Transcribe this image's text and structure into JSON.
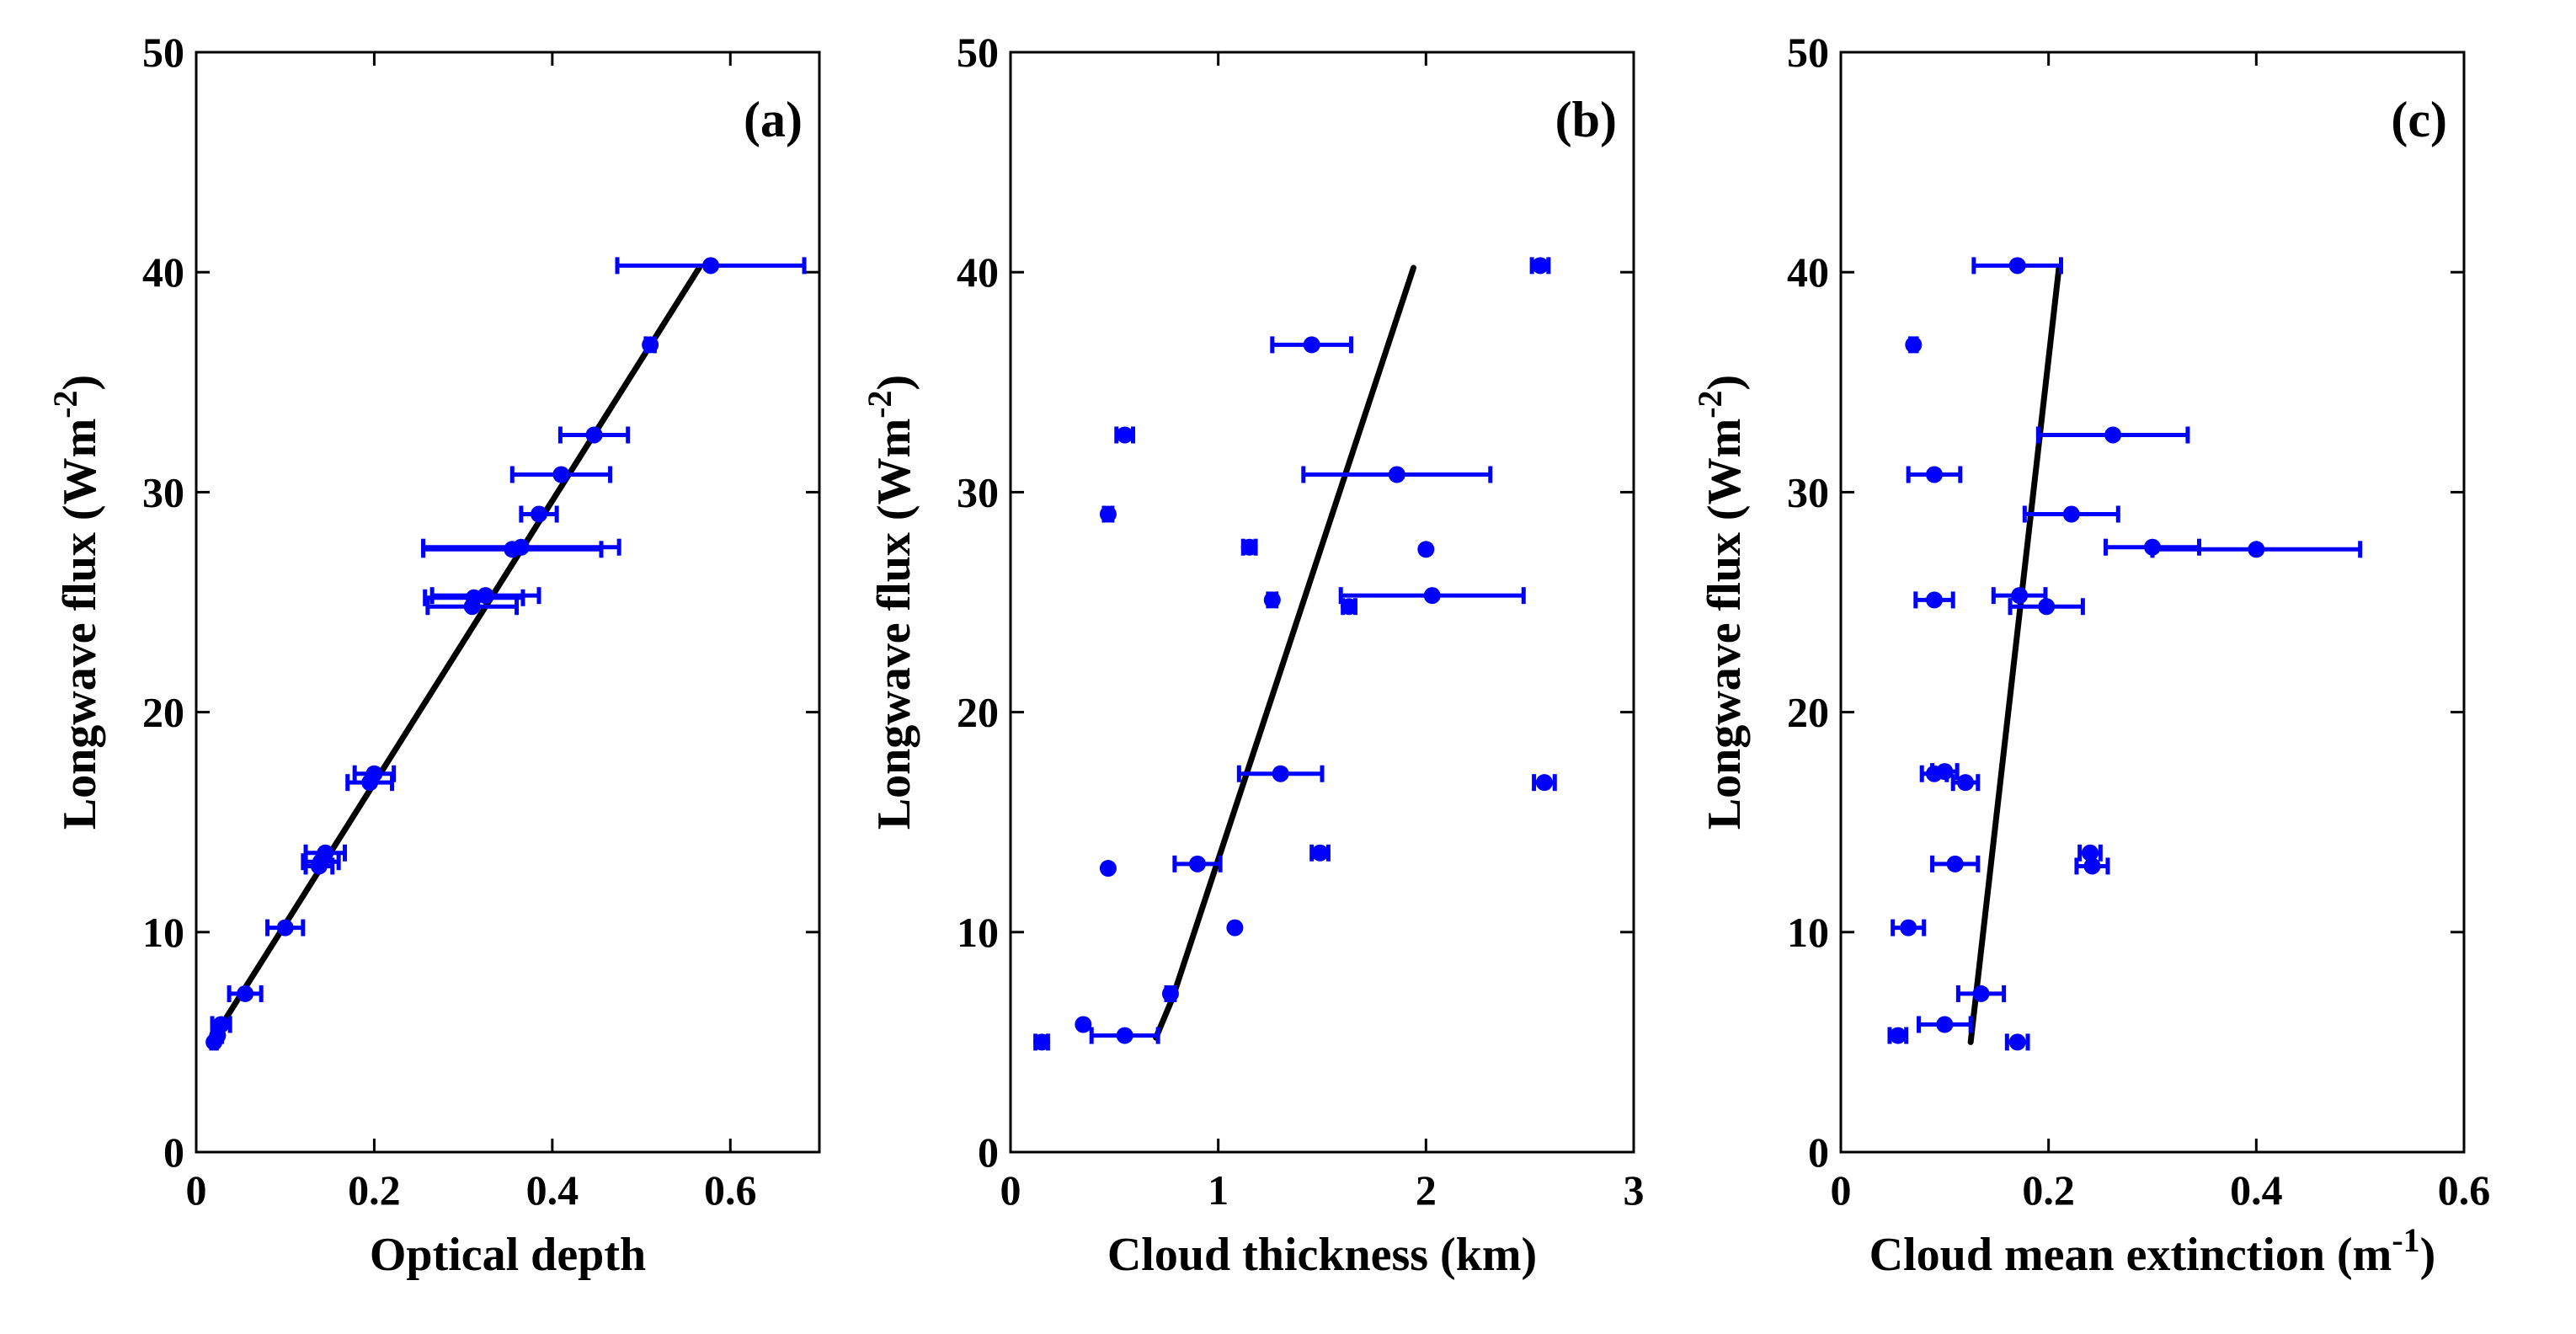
{
  "chart_data": [
    {
      "type": "scatter",
      "panel_label": "(a)",
      "xlabel": "Optical depth",
      "ylabel": "Longwave flux (Wm",
      "ylabel_sup": "-2",
      "ylabel_close": ")",
      "xlim": [
        0,
        0.7
      ],
      "ylim": [
        0,
        50
      ],
      "xticks": [
        0,
        0.2,
        0.4,
        0.6
      ],
      "xtick_labels": [
        "0",
        "0.2",
        "0.4",
        "0.6"
      ],
      "yticks": [
        0,
        10,
        20,
        30,
        40,
        50
      ],
      "ytick_labels": [
        "0",
        "10",
        "20",
        "30",
        "40",
        "50"
      ],
      "points": [
        {
          "x": 0.578,
          "y": 40.3,
          "err": 0.105
        },
        {
          "x": 0.51,
          "y": 36.7,
          "err": 0.005
        },
        {
          "x": 0.447,
          "y": 32.6,
          "err": 0.038
        },
        {
          "x": 0.41,
          "y": 30.8,
          "err": 0.055
        },
        {
          "x": 0.385,
          "y": 29.0,
          "err": 0.02
        },
        {
          "x": 0.365,
          "y": 27.5,
          "err": 0.11
        },
        {
          "x": 0.355,
          "y": 27.4,
          "err": 0.1
        },
        {
          "x": 0.325,
          "y": 25.3,
          "err": 0.06
        },
        {
          "x": 0.312,
          "y": 25.2,
          "err": 0.055
        },
        {
          "x": 0.31,
          "y": 24.8,
          "err": 0.05
        },
        {
          "x": 0.2,
          "y": 17.2,
          "err": 0.022
        },
        {
          "x": 0.195,
          "y": 16.8,
          "err": 0.025
        },
        {
          "x": 0.145,
          "y": 13.6,
          "err": 0.022
        },
        {
          "x": 0.14,
          "y": 13.2,
          "err": 0.02
        },
        {
          "x": 0.138,
          "y": 13.0,
          "err": 0.015
        },
        {
          "x": 0.1,
          "y": 10.2,
          "err": 0.02
        },
        {
          "x": 0.055,
          "y": 7.2,
          "err": 0.018
        },
        {
          "x": 0.028,
          "y": 5.8,
          "err": 0.01
        },
        {
          "x": 0.024,
          "y": 5.3,
          "err": 0.005
        },
        {
          "x": 0.02,
          "y": 5.0,
          "err": 0.003
        }
      ],
      "fit_line": [
        [
          0.015,
          4.9
        ],
        [
          0.565,
          40.2
        ]
      ]
    },
    {
      "type": "scatter",
      "panel_label": "(b)",
      "xlabel": "Cloud thickness (km)",
      "ylabel": "Longwave flux (Wm",
      "ylabel_sup": "-2",
      "ylabel_close": ")",
      "xlim": [
        0,
        3
      ],
      "ylim": [
        0,
        50
      ],
      "xticks": [
        0,
        1,
        2,
        3
      ],
      "xtick_labels": [
        "0",
        "1",
        "2",
        "3"
      ],
      "yticks": [
        0,
        10,
        20,
        30,
        40,
        50
      ],
      "ytick_labels": [
        "0",
        "10",
        "20",
        "30",
        "40",
        "50"
      ],
      "points": [
        {
          "x": 2.55,
          "y": 40.3,
          "err": 0.04
        },
        {
          "x": 1.45,
          "y": 36.7,
          "err": 0.19
        },
        {
          "x": 0.55,
          "y": 32.6,
          "err": 0.04
        },
        {
          "x": 1.86,
          "y": 30.8,
          "err": 0.45
        },
        {
          "x": 0.47,
          "y": 29.0,
          "err": 0.02
        },
        {
          "x": 1.15,
          "y": 27.5,
          "err": 0.03
        },
        {
          "x": 2.0,
          "y": 27.4,
          "err": 0.0
        },
        {
          "x": 1.26,
          "y": 25.1,
          "err": 0.02
        },
        {
          "x": 2.03,
          "y": 25.3,
          "err": 0.44
        },
        {
          "x": 1.63,
          "y": 24.8,
          "err": 0.03
        },
        {
          "x": 1.3,
          "y": 17.2,
          "err": 0.2
        },
        {
          "x": 2.57,
          "y": 16.8,
          "err": 0.05
        },
        {
          "x": 1.49,
          "y": 13.6,
          "err": 0.04
        },
        {
          "x": 0.47,
          "y": 12.9,
          "err": 0.0
        },
        {
          "x": 0.9,
          "y": 13.1,
          "err": 0.11
        },
        {
          "x": 1.08,
          "y": 10.2,
          "err": 0.0
        },
        {
          "x": 0.77,
          "y": 7.2,
          "err": 0.02
        },
        {
          "x": 0.35,
          "y": 5.8,
          "err": 0.0
        },
        {
          "x": 0.55,
          "y": 5.3,
          "err": 0.16
        },
        {
          "x": 0.15,
          "y": 5.0,
          "err": 0.03
        }
      ],
      "fit_line": [
        [
          0.7,
          5.2
        ],
        [
          0.78,
          7.0
        ],
        [
          1.94,
          40.2
        ]
      ]
    },
    {
      "type": "scatter",
      "panel_label": "(c)",
      "xlabel": "Cloud mean extinction (m",
      "xlabel_sup": "-1",
      "xlabel_close": ")",
      "ylabel": "Longwave flux (Wm",
      "ylabel_sup": "-2",
      "ylabel_close": ")",
      "xlim": [
        0,
        0.6
      ],
      "ylim": [
        0,
        50
      ],
      "xticks": [
        0,
        0.2,
        0.4,
        0.6
      ],
      "xtick_labels": [
        "0",
        "0.2",
        "0.4",
        "0.6"
      ],
      "yticks": [
        0,
        10,
        20,
        30,
        40,
        50
      ],
      "ytick_labels": [
        "0",
        "10",
        "20",
        "30",
        "40",
        "50"
      ],
      "points": [
        {
          "x": 0.17,
          "y": 40.3,
          "err": 0.042
        },
        {
          "x": 0.07,
          "y": 36.7,
          "err": 0.003
        },
        {
          "x": 0.262,
          "y": 32.6,
          "err": 0.072
        },
        {
          "x": 0.09,
          "y": 30.8,
          "err": 0.025
        },
        {
          "x": 0.222,
          "y": 29.0,
          "err": 0.045
        },
        {
          "x": 0.3,
          "y": 27.5,
          "err": 0.045
        },
        {
          "x": 0.4,
          "y": 27.4,
          "err": 0.1
        },
        {
          "x": 0.09,
          "y": 25.1,
          "err": 0.018
        },
        {
          "x": 0.172,
          "y": 25.3,
          "err": 0.025
        },
        {
          "x": 0.198,
          "y": 24.8,
          "err": 0.035
        },
        {
          "x": 0.09,
          "y": 17.2,
          "err": 0.012
        },
        {
          "x": 0.1,
          "y": 17.3,
          "err": 0.012
        },
        {
          "x": 0.12,
          "y": 16.8,
          "err": 0.012
        },
        {
          "x": 0.24,
          "y": 13.6,
          "err": 0.01
        },
        {
          "x": 0.242,
          "y": 13.0,
          "err": 0.015
        },
        {
          "x": 0.11,
          "y": 13.1,
          "err": 0.022
        },
        {
          "x": 0.065,
          "y": 10.2,
          "err": 0.015
        },
        {
          "x": 0.135,
          "y": 7.2,
          "err": 0.022
        },
        {
          "x": 0.1,
          "y": 5.8,
          "err": 0.025
        },
        {
          "x": 0.055,
          "y": 5.3,
          "err": 0.008
        },
        {
          "x": 0.17,
          "y": 5.0,
          "err": 0.01
        }
      ],
      "fit_line": [
        [
          0.125,
          5.0
        ],
        [
          0.21,
          40.2
        ]
      ]
    }
  ],
  "style": {
    "marker_color": "#0000ff",
    "line_color": "#000000",
    "axis_color": "#000000",
    "background": "#ffffff"
  }
}
